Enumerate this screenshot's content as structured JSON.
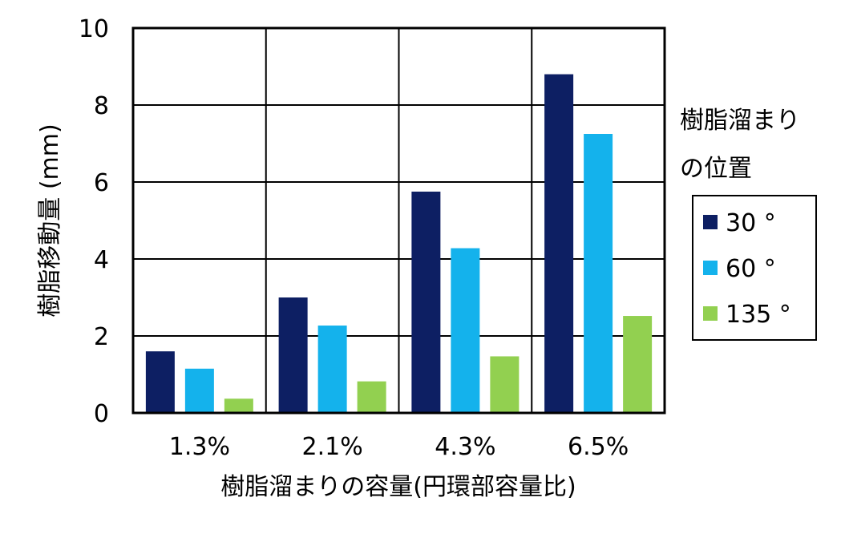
{
  "chart_data": {
    "type": "bar",
    "categories": [
      "1.3%",
      "2.1%",
      "4.3%",
      "6.5%"
    ],
    "series": [
      {
        "name": "30 °",
        "color": "#0d1f63",
        "values": [
          1.6,
          3.0,
          5.75,
          8.8
        ]
      },
      {
        "name": "60 °",
        "color": "#14b2ec",
        "values": [
          1.15,
          2.27,
          4.28,
          7.25
        ]
      },
      {
        "name": "135 °",
        "color": "#92d050",
        "values": [
          0.37,
          0.82,
          1.47,
          2.52
        ]
      }
    ],
    "xlabel": "樹脂溜まりの容量(円環部容量比)",
    "ylabel": "樹脂移動量 (mm)",
    "ylim": [
      0,
      10
    ],
    "yticks": [
      "0",
      "2",
      "4",
      "6",
      "8",
      "10"
    ],
    "grid": true,
    "legend": {
      "title_line1": "樹脂溜まり",
      "title_line2": "の位置",
      "placement": "right"
    }
  }
}
